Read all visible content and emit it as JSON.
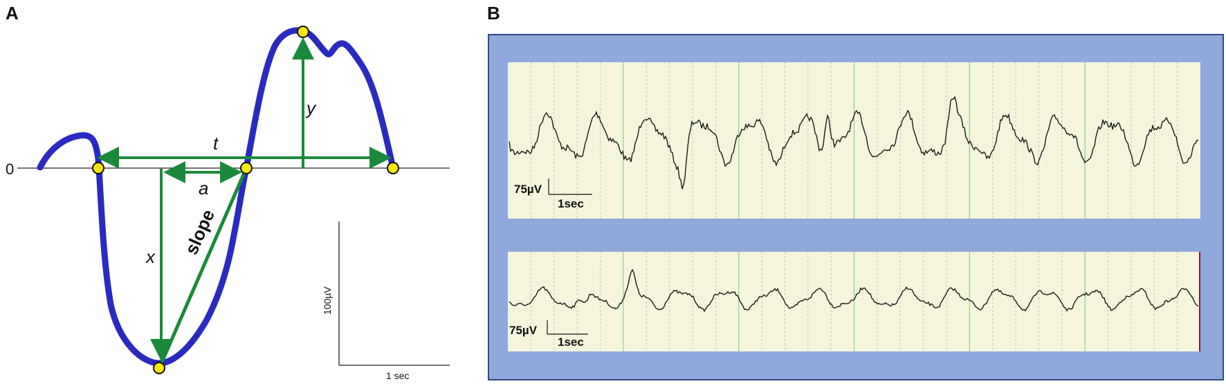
{
  "panel_a": {
    "label": "A",
    "zero_label": "0",
    "t_label": "t",
    "a_label": "a",
    "x_label": "x",
    "y_label": "y",
    "slope_label": "slope",
    "scale_v_label": "100µV",
    "scale_t_label": "1 sec",
    "colors": {
      "waveform": "#2a2ac0",
      "arrow": "#1a8a3a",
      "marker": "#f5e616"
    }
  },
  "panel_b": {
    "label": "B",
    "top_scale_v": "75µV",
    "top_scale_t": "1sec",
    "bottom_scale_v": "75µV",
    "bottom_scale_t": "1sec",
    "colors": {
      "frame": "#8fa9dc",
      "plot_bg": "#f5f5dc",
      "trace": "#1a1a1a",
      "grid": "#8ccf8c"
    }
  }
}
